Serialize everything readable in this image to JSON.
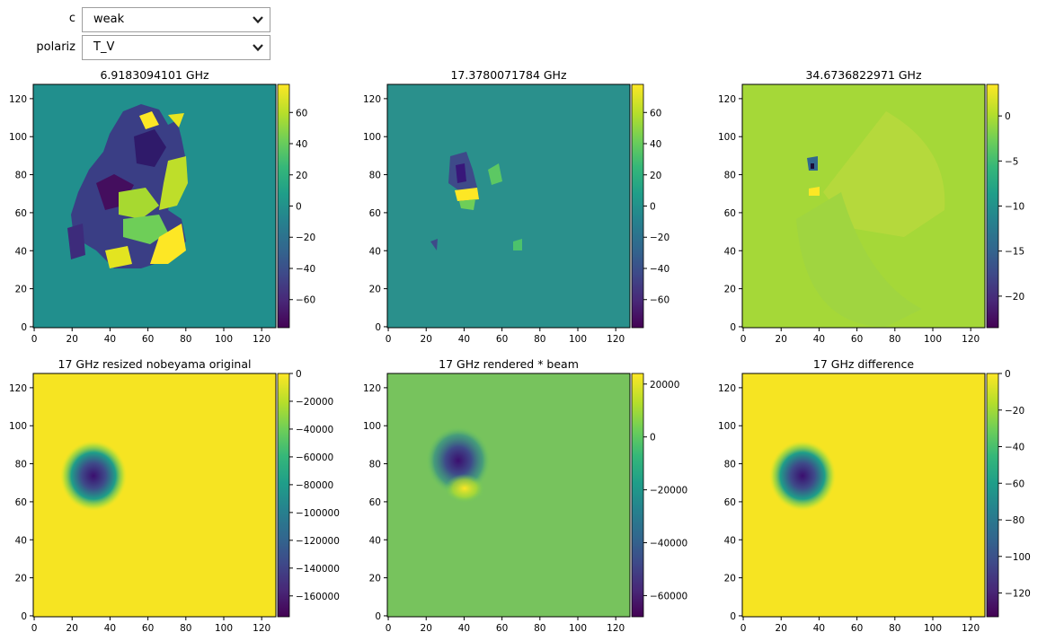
{
  "controls": [
    {
      "label": "c",
      "value": "weak"
    },
    {
      "label": "polariz",
      "value": "T_V"
    }
  ],
  "colors": {
    "viridis": [
      "#440154",
      "#482878",
      "#3e4989",
      "#31688e",
      "#26828e",
      "#1f9e89",
      "#35b779",
      "#6ece58",
      "#b5de2b",
      "#fde725"
    ]
  },
  "panels": [
    {
      "title": "6.9183094101 GHz",
      "x_ticks": [
        "0",
        "20",
        "40",
        "60",
        "80",
        "100",
        "120"
      ],
      "y_ticks": [
        "0",
        "20",
        "40",
        "60",
        "80",
        "100",
        "120"
      ],
      "colorbar": {
        "range": [
          -78,
          78
        ],
        "ticks": [
          "60",
          "40",
          "20",
          "0",
          "−20",
          "−40",
          "−60"
        ]
      },
      "background_level": 0.5
    },
    {
      "title": "17.3780071784 GHz",
      "x_ticks": [
        "0",
        "20",
        "40",
        "60",
        "80",
        "100",
        "120"
      ],
      "y_ticks": [
        "0",
        "20",
        "40",
        "60",
        "80",
        "100",
        "120"
      ],
      "colorbar": {
        "range": [
          -78,
          78
        ],
        "ticks": [
          "60",
          "40",
          "20",
          "0",
          "−20",
          "−40",
          "−60"
        ]
      },
      "background_level": 0.5
    },
    {
      "title": "34.6736822971 GHz",
      "x_ticks": [
        "0",
        "20",
        "40",
        "60",
        "80",
        "100",
        "120"
      ],
      "y_ticks": [
        "0",
        "20",
        "40",
        "60",
        "80",
        "100",
        "120"
      ],
      "colorbar": {
        "range": [
          -23.5,
          3.5
        ],
        "ticks": [
          "0",
          "−5",
          "−10",
          "−15",
          "−20"
        ]
      },
      "background_level": 0.83
    },
    {
      "title": "17 GHz resized nobeyama original",
      "x_ticks": [
        "0",
        "20",
        "40",
        "60",
        "80",
        "100",
        "120"
      ],
      "y_ticks": [
        "0",
        "20",
        "40",
        "60",
        "80",
        "100",
        "120"
      ],
      "colorbar": {
        "range": [
          -175000,
          0
        ],
        "ticks": [
          "0",
          "−20000",
          "−40000",
          "−60000",
          "−80000",
          "−100000",
          "−120000",
          "−140000",
          "−160000"
        ]
      },
      "background_level": 0.97
    },
    {
      "title": "17 GHz rendered * beam",
      "x_ticks": [
        "0",
        "20",
        "40",
        "60",
        "80",
        "100",
        "120"
      ],
      "y_ticks": [
        "0",
        "20",
        "40",
        "60",
        "80",
        "100",
        "120"
      ],
      "colorbar": {
        "range": [
          -68000,
          24000
        ],
        "ticks": [
          "20000",
          "0",
          "−20000",
          "−40000",
          "−60000"
        ]
      },
      "background_level": 0.72
    },
    {
      "title": "17 GHz difference",
      "x_ticks": [
        "0",
        "20",
        "40",
        "60",
        "80",
        "100",
        "120"
      ],
      "y_ticks": [
        "0",
        "20",
        "40",
        "60",
        "80",
        "100",
        "120"
      ],
      "colorbar": {
        "range": [
          -133,
          0
        ],
        "ticks": [
          "0",
          "−20",
          "−40",
          "−60",
          "−80",
          "−100",
          "−120"
        ]
      },
      "background_level": 0.97
    }
  ]
}
